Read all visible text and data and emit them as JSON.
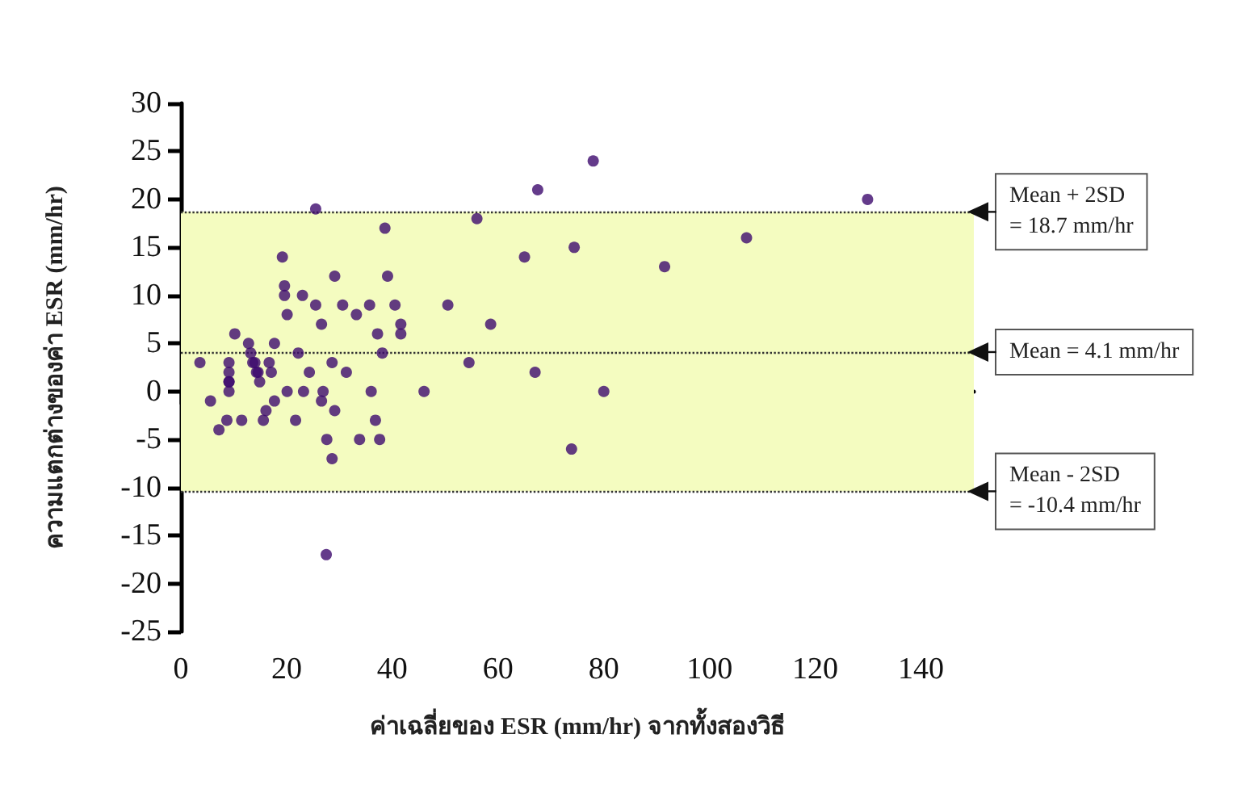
{
  "chart_data": {
    "type": "scatter",
    "xlabel": "ค่าเฉลี่ยของ ESR (mm/hr) จากทั้งสองวิธี",
    "ylabel": "ความแตกต่างของค่า ESR (mm/hr)",
    "x": [
      3.6,
      5.6,
      7.2,
      8.7,
      9.1,
      9.1,
      9.1,
      9.1,
      9.1,
      10.2,
      11.5,
      12.8,
      13.2,
      13.6,
      14,
      14.3,
      14.6,
      14.9,
      15.6,
      16.1,
      16.7,
      17.1,
      17.7,
      17.7,
      19.2,
      19.6,
      19.6,
      20.1,
      20.1,
      21.7,
      22.2,
      23,
      23.2,
      24.3,
      25.5,
      25.5,
      26.6,
      26.6,
      26.9,
      27.5,
      27.6,
      28.6,
      28.6,
      29.1,
      29.1,
      30.6,
      31.3,
      33.2,
      33.8,
      35.7,
      36,
      36.8,
      37.2,
      37.6,
      38.1,
      38.6,
      39.1,
      40.5,
      41.6,
      41.6,
      46,
      50.5,
      54.5,
      56,
      58.6,
      65,
      67,
      67.5,
      73.9,
      74.4,
      78,
      80,
      91.5,
      107,
      129.9
    ],
    "values": [
      3,
      -1,
      -4,
      -3,
      3,
      2,
      1,
      1,
      0,
      6,
      -3,
      5,
      4,
      3,
      3,
      2,
      2,
      1,
      -3,
      -2,
      3,
      2,
      -1,
      5,
      14,
      11,
      10,
      8,
      0,
      -3,
      4,
      10,
      0,
      2,
      9,
      19,
      7,
      -1,
      0,
      -17,
      -5,
      -7,
      3,
      12,
      -2,
      9,
      2,
      8,
      -5,
      9,
      0,
      -3,
      6,
      -5,
      4,
      17,
      12,
      9,
      7,
      6,
      0,
      9,
      3,
      18,
      7,
      14,
      2,
      21,
      -6,
      15,
      24,
      0,
      13,
      16,
      20
    ],
    "color": "#3d0a6e",
    "marker": "circle",
    "xlim": [
      0,
      150
    ],
    "xticks": [
      0,
      20,
      40,
      60,
      80,
      100,
      120,
      140
    ],
    "ylim": [
      -25,
      30
    ],
    "yticks": [
      -25,
      -20,
      -15,
      -10,
      -5,
      0,
      5,
      10,
      15,
      20,
      25,
      30
    ],
    "bands": [
      {
        "axis": "y",
        "from": -10.4,
        "to": 18.7,
        "color": "#f4fcc0"
      }
    ],
    "ref_lines": [
      {
        "axis": "y",
        "value": 18.7,
        "label": "Mean + 2SD\n= 18.7 mm/hr",
        "line_style": "dotted"
      },
      {
        "axis": "y",
        "value": 4.1,
        "label": "Mean = 4.1 mm/hr",
        "line_style": "dotted"
      },
      {
        "axis": "y",
        "value": -10.4,
        "label": "Mean - 2SD\n= -10.4 mm/hr",
        "line_style": "dotted"
      }
    ]
  }
}
